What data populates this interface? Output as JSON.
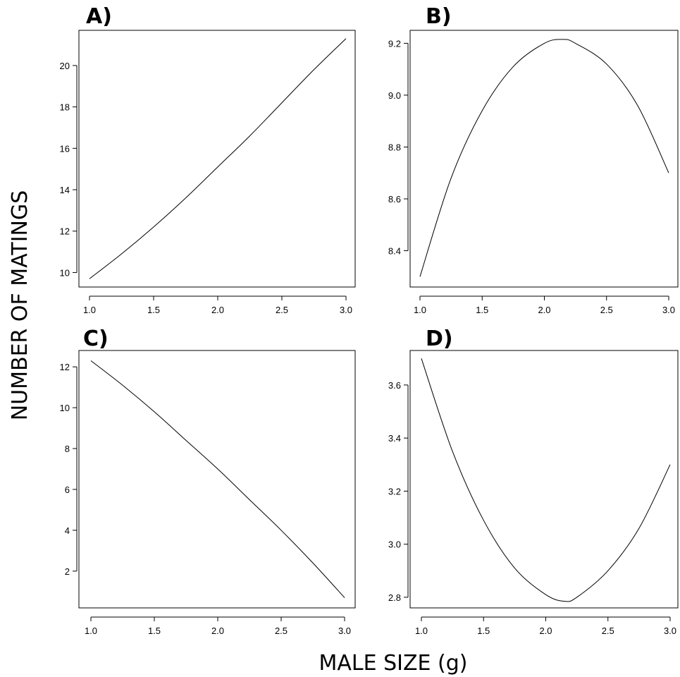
{
  "figure": {
    "ylabel": "NUMBER OF MATINGS",
    "xlabel": "MALE SIZE (g)"
  },
  "chart_data": [
    {
      "type": "line",
      "panel": "A)",
      "x_ticks": [
        "1.0",
        "1.5",
        "2.0",
        "2.5",
        "3.0"
      ],
      "y_ticks": [
        "10",
        "12",
        "14",
        "16",
        "18",
        "20"
      ],
      "xlim": [
        1.0,
        3.0
      ],
      "ylim": [
        9.3,
        21.7
      ],
      "series": [
        {
          "x": [
            1.0,
            1.25,
            1.5,
            1.75,
            2.0,
            2.25,
            2.5,
            2.75,
            3.0
          ],
          "y": [
            9.7,
            10.9,
            12.2,
            13.6,
            15.1,
            16.6,
            18.2,
            19.8,
            21.3
          ]
        }
      ]
    },
    {
      "type": "line",
      "panel": "B)",
      "x_ticks": [
        "1.0",
        "1.5",
        "2.0",
        "2.5",
        "3.0"
      ],
      "y_ticks": [
        "8.4",
        "8.6",
        "8.8",
        "9.0",
        "9.2"
      ],
      "xlim": [
        1.0,
        3.0
      ],
      "ylim": [
        8.26,
        9.25
      ],
      "series": [
        {
          "x": [
            1.0,
            1.25,
            1.5,
            1.75,
            2.0,
            2.15,
            2.25,
            2.5,
            2.75,
            3.0
          ],
          "y": [
            8.3,
            8.68,
            8.94,
            9.11,
            9.2,
            9.215,
            9.2,
            9.12,
            8.96,
            8.7
          ]
        }
      ]
    },
    {
      "type": "line",
      "panel": "C)",
      "x_ticks": [
        "1.0",
        "1.5",
        "2.0",
        "2.5",
        "3.0"
      ],
      "y_ticks": [
        "2",
        "4",
        "6",
        "8",
        "10",
        "12"
      ],
      "xlim": [
        1.0,
        3.0
      ],
      "ylim": [
        0.2,
        12.8
      ],
      "series": [
        {
          "x": [
            1.0,
            1.25,
            1.5,
            1.75,
            2.0,
            2.25,
            2.5,
            2.75,
            3.0
          ],
          "y": [
            12.3,
            11.1,
            9.8,
            8.4,
            7.0,
            5.5,
            4.0,
            2.4,
            0.7
          ]
        }
      ]
    },
    {
      "type": "line",
      "panel": "D)",
      "x_ticks": [
        "1.0",
        "1.5",
        "2.0",
        "2.5",
        "3.0"
      ],
      "y_ticks": [
        "2.8",
        "3.0",
        "3.2",
        "3.4",
        "3.6"
      ],
      "xlim": [
        1.0,
        3.0
      ],
      "ylim": [
        2.76,
        3.73
      ],
      "series": [
        {
          "x": [
            1.0,
            1.25,
            1.5,
            1.75,
            2.0,
            2.15,
            2.25,
            2.5,
            2.75,
            3.0
          ],
          "y": [
            3.7,
            3.35,
            3.09,
            2.91,
            2.81,
            2.785,
            2.8,
            2.9,
            3.06,
            3.3
          ]
        }
      ]
    }
  ]
}
